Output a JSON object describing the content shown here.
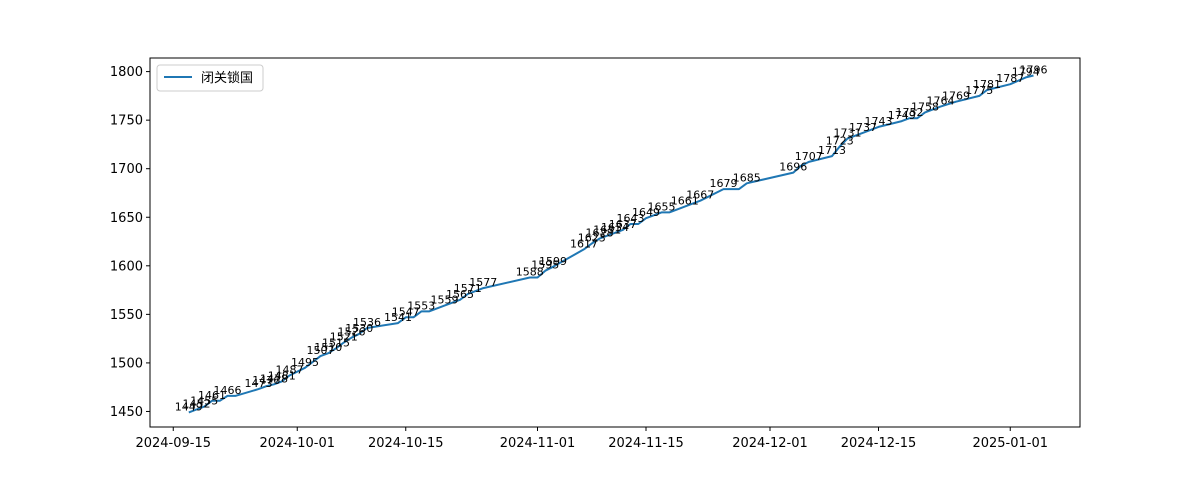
{
  "chart_data": {
    "type": "line",
    "title": "",
    "xlabel": "",
    "ylabel": "",
    "xlim": [
      "2024-09-12",
      "2025-01-10"
    ],
    "ylim": [
      1434,
      1814
    ],
    "grid": false,
    "legend_position": "upper-left",
    "x_ticks": [
      "2024-09-15",
      "2024-10-01",
      "2024-10-15",
      "2024-11-01",
      "2024-11-15",
      "2024-12-01",
      "2024-12-15",
      "2025-01-01"
    ],
    "y_ticks": [
      1450,
      1500,
      1550,
      1600,
      1650,
      1700,
      1750,
      1800
    ],
    "series": [
      {
        "name": "闭关锁国",
        "color": "#1f77b4",
        "x": [
          "2024-09-17",
          "2024-09-18",
          "2024-09-19",
          "2024-09-20",
          "2024-09-21",
          "2024-09-22",
          "2024-09-23",
          "2024-09-26",
          "2024-09-27",
          "2024-09-28",
          "2024-09-29",
          "2024-09-30",
          "2024-10-02",
          "2024-10-04",
          "2024-10-05",
          "2024-10-06",
          "2024-10-07",
          "2024-10-08",
          "2024-10-09",
          "2024-10-10",
          "2024-10-14",
          "2024-10-15",
          "2024-10-16",
          "2024-10-17",
          "2024-10-18",
          "2024-10-20",
          "2024-10-22",
          "2024-10-23",
          "2024-10-25",
          "2024-10-31",
          "2024-11-01",
          "2024-11-02",
          "2024-11-03",
          "2024-11-07",
          "2024-11-08",
          "2024-11-09",
          "2024-11-10",
          "2024-11-11",
          "2024-11-12",
          "2024-11-13",
          "2024-11-14",
          "2024-11-15",
          "2024-11-17",
          "2024-11-18",
          "2024-11-20",
          "2024-11-22",
          "2024-11-25",
          "2024-11-27",
          "2024-11-28",
          "2024-12-04",
          "2024-12-05",
          "2024-12-06",
          "2024-12-09",
          "2024-12-10",
          "2024-12-11",
          "2024-12-13",
          "2024-12-15",
          "2024-12-18",
          "2024-12-19",
          "2024-12-20",
          "2024-12-21",
          "2024-12-23",
          "2024-12-25",
          "2024-12-28",
          "2024-12-29",
          "2025-01-01",
          "2025-01-03",
          "2025-01-04"
        ],
        "values": [
          1449,
          1452,
          1455,
          1461,
          1461,
          1466,
          1466,
          1473,
          1476,
          1478,
          1481,
          1487,
          1495,
          1507,
          1510,
          1515,
          1521,
          1526,
          1530,
          1536,
          1541,
          1547,
          1547,
          1553,
          1553,
          1559,
          1565,
          1571,
          1577,
          1588,
          1588,
          1595,
          1599,
          1617,
          1623,
          1628,
          1631,
          1634,
          1637,
          1643,
          1643,
          1649,
          1655,
          1655,
          1661,
          1667,
          1679,
          1679,
          1685,
          1696,
          1703,
          1707,
          1713,
          1723,
          1731,
          1737,
          1743,
          1749,
          1752,
          1752,
          1758,
          1764,
          1769,
          1775,
          1781,
          1787,
          1794,
          1796
        ],
        "labels": [
          "1449",
          "1452",
          "1455",
          "1461",
          "",
          "1466",
          "",
          "1473",
          "1476",
          "1478",
          "1481",
          "1487",
          "1495",
          "1507",
          "1510",
          "1515",
          "1521",
          "1526",
          "1530",
          "1536",
          "1541",
          "1547",
          "",
          "1553",
          "",
          "1559",
          "1565",
          "1571",
          "1577",
          "1588",
          "",
          "1595",
          "1599",
          "1617",
          "1623",
          "1628",
          "1631",
          "1634",
          "1637",
          "1643",
          "",
          "1649",
          "1655",
          "",
          "1661",
          "1667",
          "1679",
          "",
          "1685",
          "1696",
          "",
          "1707",
          "1713",
          "1723",
          "1731",
          "1737",
          "1743",
          "1749",
          "1752",
          "",
          "1758",
          "1764",
          "1769",
          "1775",
          "1781",
          "1787",
          "1794",
          "1796"
        ]
      }
    ]
  }
}
